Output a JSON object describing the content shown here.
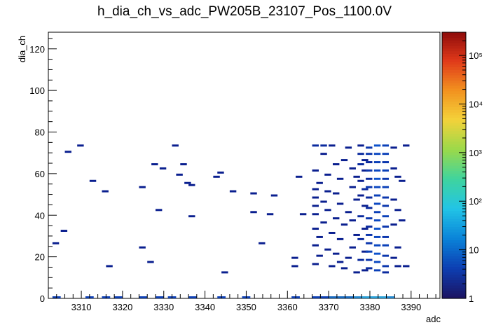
{
  "chart_data": {
    "type": "heatmap",
    "title": "h_dia_ch_vs_adc_PW205B_23107_Pos_1100.0V",
    "xlabel": "adc",
    "ylabel": "dia_ch",
    "xlim": [
      3302,
      3397
    ],
    "ylim": [
      0,
      128
    ],
    "x_ticks": [
      3310,
      3320,
      3330,
      3340,
      3350,
      3360,
      3370,
      3380,
      3390
    ],
    "y_ticks": [
      0,
      20,
      40,
      60,
      80,
      100,
      120
    ],
    "grid": false,
    "colorbar": {
      "scale": "log",
      "range": [
        1,
        300000
      ],
      "tick_labels": [
        {
          "value": 1,
          "label": "1"
        },
        {
          "value": 10,
          "label": "10"
        },
        {
          "value": 100,
          "label": "10²"
        },
        {
          "value": 1000,
          "label": "10³"
        },
        {
          "value": 10000,
          "label": "10⁴"
        },
        {
          "value": 100000,
          "label": "10⁵"
        }
      ],
      "palette": [
        "#1b1464",
        "#0d3fb3",
        "#0a84d9",
        "#22c4e6",
        "#3fd49e",
        "#9bd94a",
        "#f3d23a",
        "#f2921f",
        "#e0391a",
        "#8b0a0a"
      ]
    },
    "bins": [
      {
        "x": 3306,
        "y": 70,
        "count": 1
      },
      {
        "x": 3309,
        "y": 73,
        "count": 1
      },
      {
        "x": 3305,
        "y": 32,
        "count": 1
      },
      {
        "x": 3303,
        "y": 26,
        "count": 1
      },
      {
        "x": 3312,
        "y": 56,
        "count": 1
      },
      {
        "x": 3315,
        "y": 51,
        "count": 1
      },
      {
        "x": 3316,
        "y": 15,
        "count": 1
      },
      {
        "x": 3324,
        "y": 53,
        "count": 1
      },
      {
        "x": 3324,
        "y": 24,
        "count": 1
      },
      {
        "x": 3326,
        "y": 17,
        "count": 1
      },
      {
        "x": 3327,
        "y": 64,
        "count": 1
      },
      {
        "x": 3328,
        "y": 42,
        "count": 1
      },
      {
        "x": 3329,
        "y": 62,
        "count": 1
      },
      {
        "x": 3332,
        "y": 73,
        "count": 1
      },
      {
        "x": 3333,
        "y": 59,
        "count": 1
      },
      {
        "x": 3334,
        "y": 64,
        "count": 1
      },
      {
        "x": 3335,
        "y": 55,
        "count": 1
      },
      {
        "x": 3336,
        "y": 54,
        "count": 1
      },
      {
        "x": 3336,
        "y": 39,
        "count": 1
      },
      {
        "x": 3342,
        "y": 58,
        "count": 1
      },
      {
        "x": 3343,
        "y": 60,
        "count": 1
      },
      {
        "x": 3344,
        "y": 12,
        "count": 1
      },
      {
        "x": 3346,
        "y": 51,
        "count": 1
      },
      {
        "x": 3351,
        "y": 50,
        "count": 1
      },
      {
        "x": 3351,
        "y": 41,
        "count": 1
      },
      {
        "x": 3353,
        "y": 26,
        "count": 1
      },
      {
        "x": 3355,
        "y": 40,
        "count": 1
      },
      {
        "x": 3356,
        "y": 49,
        "count": 1
      },
      {
        "x": 3361,
        "y": 19,
        "count": 1
      },
      {
        "x": 3361,
        "y": 15,
        "count": 1
      },
      {
        "x": 3362,
        "y": 58,
        "count": 1
      },
      {
        "x": 3363,
        "y": 40,
        "count": 1
      },
      {
        "x": 3366,
        "y": 73,
        "count": 2
      },
      {
        "x": 3368,
        "y": 73,
        "count": 2
      },
      {
        "x": 3370,
        "y": 73,
        "count": 1
      },
      {
        "x": 3374,
        "y": 72,
        "count": 1
      },
      {
        "x": 3377,
        "y": 73,
        "count": 1
      },
      {
        "x": 3379,
        "y": 72,
        "count": 3
      },
      {
        "x": 3381,
        "y": 73,
        "count": 6
      },
      {
        "x": 3383,
        "y": 73,
        "count": 4
      },
      {
        "x": 3385,
        "y": 72,
        "count": 1
      },
      {
        "x": 3388,
        "y": 73,
        "count": 1
      },
      {
        "x": 3368,
        "y": 69,
        "count": 1
      },
      {
        "x": 3371,
        "y": 64,
        "count": 1
      },
      {
        "x": 3373,
        "y": 66,
        "count": 1
      },
      {
        "x": 3366,
        "y": 61,
        "count": 1
      },
      {
        "x": 3369,
        "y": 59,
        "count": 1
      },
      {
        "x": 3372,
        "y": 57,
        "count": 1
      },
      {
        "x": 3367,
        "y": 55,
        "count": 1
      },
      {
        "x": 3366,
        "y": 52,
        "count": 1
      },
      {
        "x": 3369,
        "y": 51,
        "count": 1
      },
      {
        "x": 3371,
        "y": 50,
        "count": 1
      },
      {
        "x": 3366,
        "y": 48,
        "count": 1
      },
      {
        "x": 3368,
        "y": 46,
        "count": 1
      },
      {
        "x": 3372,
        "y": 45,
        "count": 1
      },
      {
        "x": 3366,
        "y": 44,
        "count": 1
      },
      {
        "x": 3369,
        "y": 42,
        "count": 1
      },
      {
        "x": 3374,
        "y": 41,
        "count": 1
      },
      {
        "x": 3366,
        "y": 40,
        "count": 1
      },
      {
        "x": 3371,
        "y": 38,
        "count": 1
      },
      {
        "x": 3368,
        "y": 36,
        "count": 1
      },
      {
        "x": 3373,
        "y": 35,
        "count": 1
      },
      {
        "x": 3366,
        "y": 33,
        "count": 1
      },
      {
        "x": 3370,
        "y": 31,
        "count": 1
      },
      {
        "x": 3367,
        "y": 29,
        "count": 1
      },
      {
        "x": 3372,
        "y": 28,
        "count": 1
      },
      {
        "x": 3366,
        "y": 25,
        "count": 1
      },
      {
        "x": 3369,
        "y": 23,
        "count": 1
      },
      {
        "x": 3371,
        "y": 21,
        "count": 1
      },
      {
        "x": 3367,
        "y": 20,
        "count": 1
      },
      {
        "x": 3366,
        "y": 16,
        "count": 1
      },
      {
        "x": 3370,
        "y": 15,
        "count": 1
      },
      {
        "x": 3373,
        "y": 14,
        "count": 1
      },
      {
        "x": 3372,
        "y": 17,
        "count": 1
      },
      {
        "x": 3374,
        "y": 19,
        "count": 1
      },
      {
        "x": 3375,
        "y": 62,
        "count": 1
      },
      {
        "x": 3376,
        "y": 58,
        "count": 1
      },
      {
        "x": 3375,
        "y": 53,
        "count": 1
      },
      {
        "x": 3376,
        "y": 47,
        "count": 1
      },
      {
        "x": 3375,
        "y": 37,
        "count": 1
      },
      {
        "x": 3376,
        "y": 30,
        "count": 1
      },
      {
        "x": 3375,
        "y": 24,
        "count": 1
      },
      {
        "x": 3376,
        "y": 12,
        "count": 1
      },
      {
        "x": 3377,
        "y": 69,
        "count": 2
      },
      {
        "x": 3378,
        "y": 66,
        "count": 1
      },
      {
        "x": 3377,
        "y": 64,
        "count": 2
      },
      {
        "x": 3378,
        "y": 61,
        "count": 1
      },
      {
        "x": 3377,
        "y": 56,
        "count": 1
      },
      {
        "x": 3378,
        "y": 52,
        "count": 2
      },
      {
        "x": 3377,
        "y": 49,
        "count": 1
      },
      {
        "x": 3378,
        "y": 44,
        "count": 1
      },
      {
        "x": 3377,
        "y": 39,
        "count": 2
      },
      {
        "x": 3378,
        "y": 33,
        "count": 1
      },
      {
        "x": 3377,
        "y": 28,
        "count": 2
      },
      {
        "x": 3378,
        "y": 22,
        "count": 1
      },
      {
        "x": 3377,
        "y": 18,
        "count": 2
      },
      {
        "x": 3378,
        "y": 13,
        "count": 1
      },
      {
        "x": 3379,
        "y": 69,
        "count": 3
      },
      {
        "x": 3379,
        "y": 65,
        "count": 2
      },
      {
        "x": 3379,
        "y": 61,
        "count": 3
      },
      {
        "x": 3379,
        "y": 57,
        "count": 2
      },
      {
        "x": 3379,
        "y": 53,
        "count": 3
      },
      {
        "x": 3379,
        "y": 48,
        "count": 2
      },
      {
        "x": 3379,
        "y": 43,
        "count": 2
      },
      {
        "x": 3379,
        "y": 38,
        "count": 3
      },
      {
        "x": 3379,
        "y": 34,
        "count": 2
      },
      {
        "x": 3379,
        "y": 30,
        "count": 3
      },
      {
        "x": 3379,
        "y": 26,
        "count": 3
      },
      {
        "x": 3379,
        "y": 22,
        "count": 4
      },
      {
        "x": 3379,
        "y": 18,
        "count": 3
      },
      {
        "x": 3379,
        "y": 14,
        "count": 2
      },
      {
        "x": 3381,
        "y": 69,
        "count": 5
      },
      {
        "x": 3381,
        "y": 65,
        "count": 4
      },
      {
        "x": 3381,
        "y": 61,
        "count": 5
      },
      {
        "x": 3381,
        "y": 57,
        "count": 6
      },
      {
        "x": 3381,
        "y": 53,
        "count": 5
      },
      {
        "x": 3381,
        "y": 49,
        "count": 4
      },
      {
        "x": 3381,
        "y": 45,
        "count": 5
      },
      {
        "x": 3381,
        "y": 41,
        "count": 4
      },
      {
        "x": 3381,
        "y": 37,
        "count": 5
      },
      {
        "x": 3381,
        "y": 33,
        "count": 6
      },
      {
        "x": 3381,
        "y": 29,
        "count": 5
      },
      {
        "x": 3381,
        "y": 25,
        "count": 5
      },
      {
        "x": 3381,
        "y": 21,
        "count": 6
      },
      {
        "x": 3381,
        "y": 17,
        "count": 5
      },
      {
        "x": 3381,
        "y": 13,
        "count": 4
      },
      {
        "x": 3383,
        "y": 69,
        "count": 4
      },
      {
        "x": 3383,
        "y": 65,
        "count": 3
      },
      {
        "x": 3383,
        "y": 61,
        "count": 4
      },
      {
        "x": 3383,
        "y": 57,
        "count": 3
      },
      {
        "x": 3383,
        "y": 53,
        "count": 4
      },
      {
        "x": 3383,
        "y": 48,
        "count": 3
      },
      {
        "x": 3383,
        "y": 44,
        "count": 3
      },
      {
        "x": 3383,
        "y": 39,
        "count": 4
      },
      {
        "x": 3383,
        "y": 34,
        "count": 3
      },
      {
        "x": 3383,
        "y": 29,
        "count": 3
      },
      {
        "x": 3383,
        "y": 25,
        "count": 4
      },
      {
        "x": 3383,
        "y": 20,
        "count": 3
      },
      {
        "x": 3383,
        "y": 15,
        "count": 3
      },
      {
        "x": 3383,
        "y": 12,
        "count": 2
      },
      {
        "x": 3385,
        "y": 62,
        "count": 1
      },
      {
        "x": 3386,
        "y": 58,
        "count": 1
      },
      {
        "x": 3385,
        "y": 47,
        "count": 1
      },
      {
        "x": 3386,
        "y": 42,
        "count": 1
      },
      {
        "x": 3385,
        "y": 35,
        "count": 1
      },
      {
        "x": 3386,
        "y": 24,
        "count": 1
      },
      {
        "x": 3385,
        "y": 19,
        "count": 1
      },
      {
        "x": 3386,
        "y": 15,
        "count": 1
      },
      {
        "x": 3387,
        "y": 56,
        "count": 1
      },
      {
        "x": 3387,
        "y": 37,
        "count": 1
      },
      {
        "x": 3388,
        "y": 15,
        "count": 1
      }
    ],
    "bottom_row": [
      {
        "x": 3303,
        "count": 1
      },
      {
        "x": 3311,
        "count": 1
      },
      {
        "x": 3315,
        "count": 1
      },
      {
        "x": 3318,
        "count": 1
      },
      {
        "x": 3324,
        "count": 1
      },
      {
        "x": 3328,
        "count": 1
      },
      {
        "x": 3331,
        "count": 1
      },
      {
        "x": 3336,
        "count": 1
      },
      {
        "x": 3343,
        "count": 1
      },
      {
        "x": 3349,
        "count": 1
      },
      {
        "x": 3361,
        "count": 1
      },
      {
        "x": 3366,
        "count": 3
      },
      {
        "x": 3368,
        "count": 4
      },
      {
        "x": 3370,
        "count": 8
      },
      {
        "x": 3372,
        "count": 12
      },
      {
        "x": 3374,
        "count": 18
      },
      {
        "x": 3376,
        "count": 25
      },
      {
        "x": 3378,
        "count": 40
      },
      {
        "x": 3380,
        "count": 55
      },
      {
        "x": 3382,
        "count": 50
      },
      {
        "x": 3384,
        "count": 30
      }
    ]
  }
}
